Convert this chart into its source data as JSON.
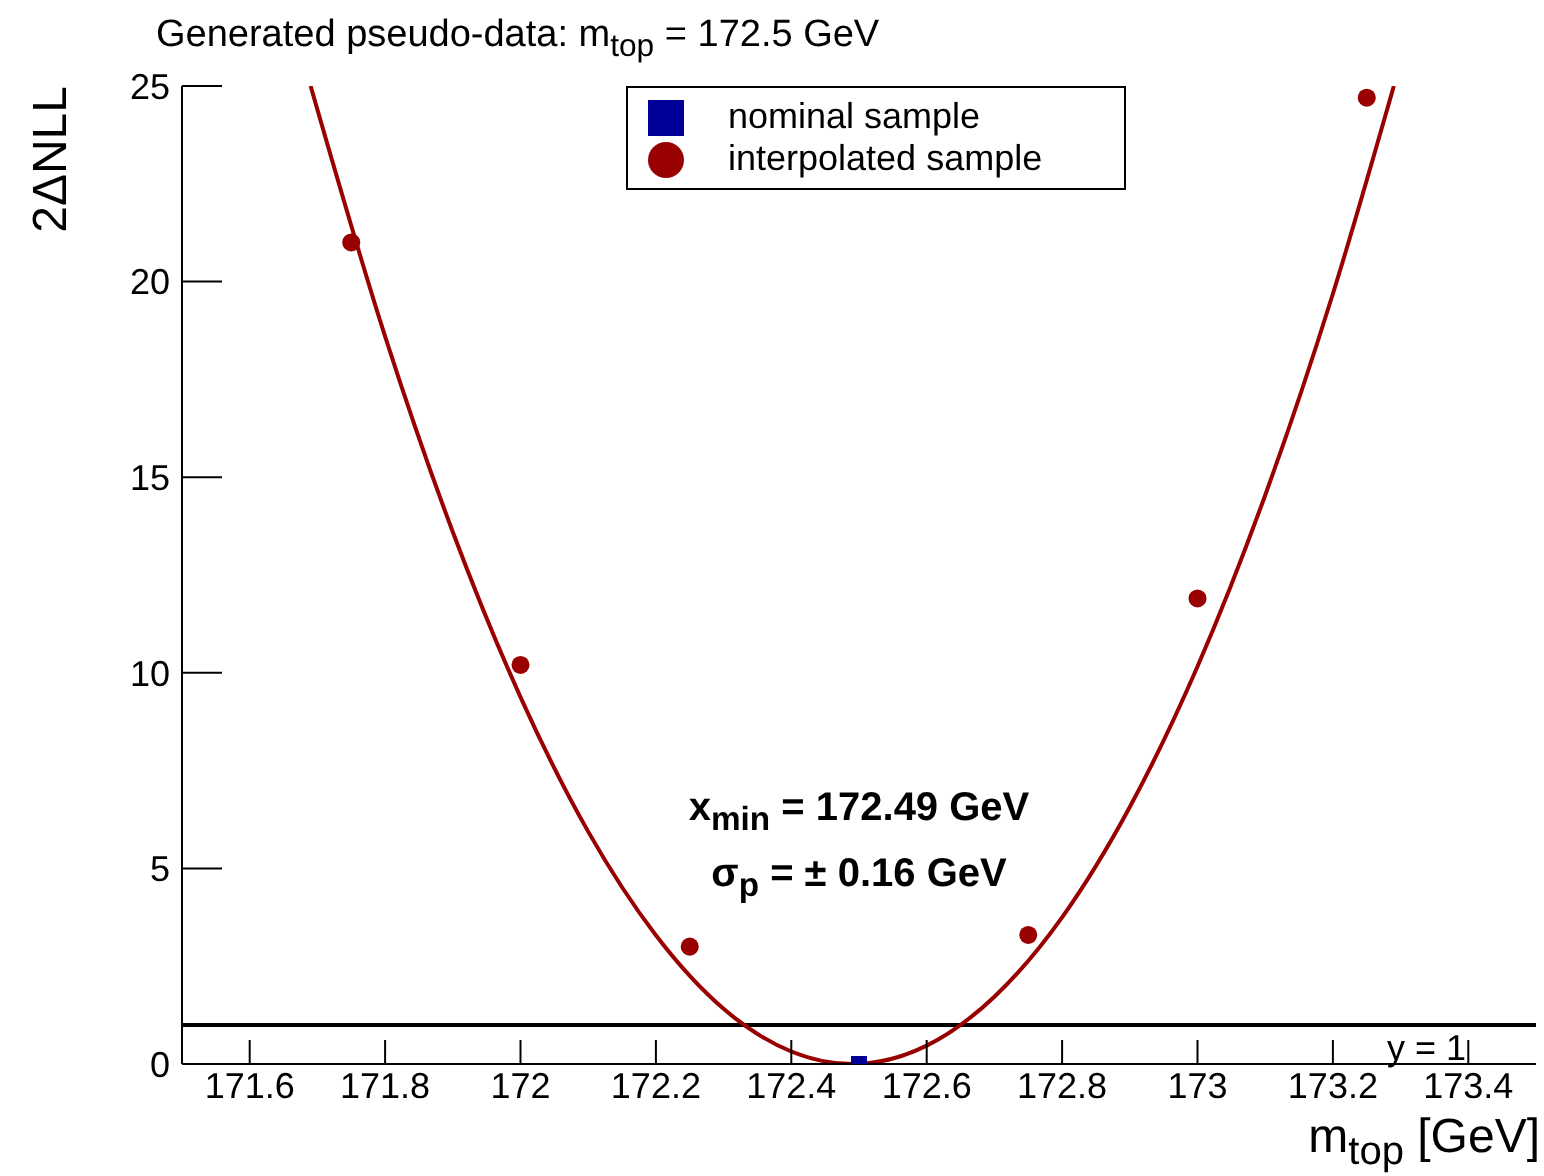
{
  "chart_data": {
    "type": "scatter",
    "title": "Generated pseudo-data: m$_{top}$ = 172.5 GeV",
    "xlabel": "m$_{top}$ [GeV]",
    "ylabel": "2ΔNLL",
    "annotations": [
      "x$_{min}$ = 172.49 GeV",
      "σ$_{p}$ = ± 0.16 GeV"
    ],
    "series": [
      {
        "name": "nominal sample",
        "marker": "square",
        "color": "#000099",
        "x": [
          172.5
        ],
        "values": [
          0
        ]
      },
      {
        "name": "interpolated sample",
        "marker": "circle",
        "color": "#990000",
        "x": [
          171.75,
          172.0,
          172.25,
          172.75,
          173.0,
          173.25
        ],
        "values": [
          21.0,
          10.2,
          3.0,
          3.3,
          11.9,
          24.7
        ]
      },
      {
        "type": "line",
        "marker": "none",
        "color": "#990000",
        "x": [
          171.69,
          171.8,
          171.9,
          172.0,
          172.1,
          172.2,
          172.3,
          172.4,
          172.49,
          172.6,
          172.7,
          172.8,
          172.9,
          173.0,
          173.1,
          173.2,
          173.29
        ],
        "values": [
          25.0,
          18.6,
          13.6,
          9.38,
          5.94,
          3.29,
          1.41,
          0.32,
          0,
          0.47,
          1.72,
          3.75,
          6.57,
          10.16,
          14.54,
          19.69,
          25.0
        ]
      }
    ],
    "xlim": [
      171.5,
      173.5
    ],
    "xticks": [
      171.6,
      171.8,
      172,
      172.2,
      172.4,
      172.6,
      172.8,
      173,
      173.2,
      173.4
    ],
    "ylim": [
      0,
      25
    ],
    "yticks": [
      0,
      5,
      10,
      15,
      20,
      25
    ],
    "ref_lines": [
      {
        "axis": "y",
        "value": 1,
        "label": "y = 1",
        "color": "#000000"
      }
    ],
    "legend": "top",
    "grid": false
  }
}
